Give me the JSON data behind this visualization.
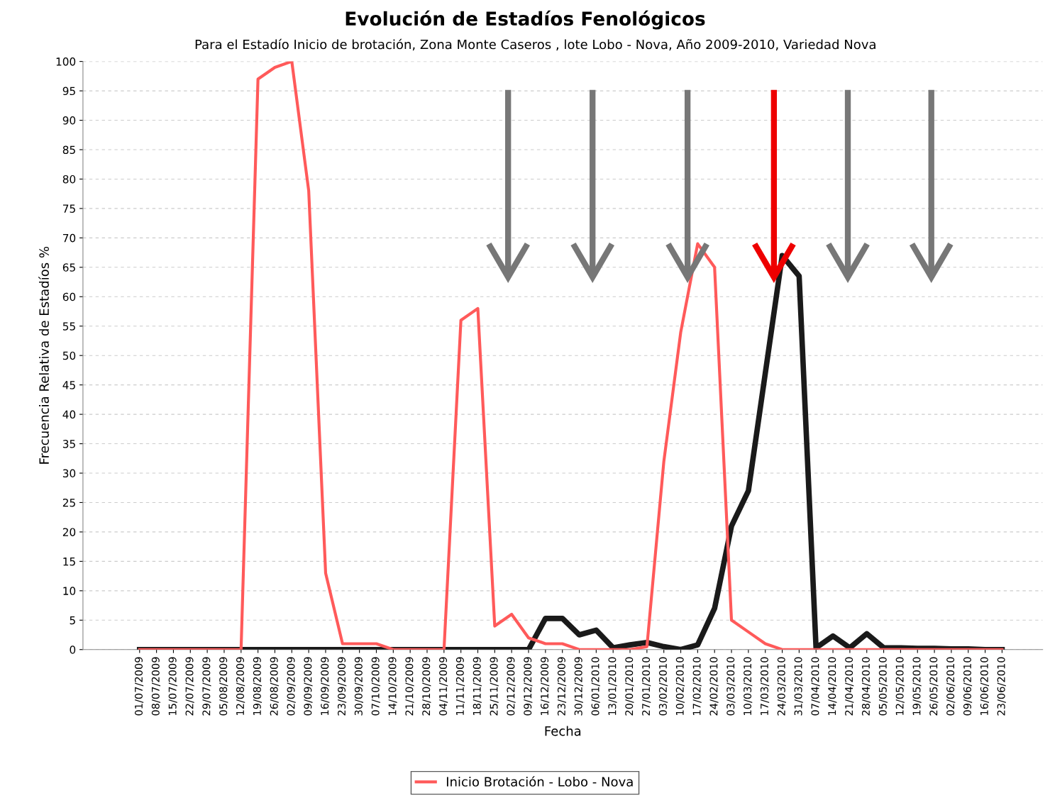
{
  "chart_data": {
    "type": "line",
    "title": "Evolución de Estadíos Fenológicos",
    "subtitle": "Para el Estadío Inicio de brotación, Zona Monte Caseros , lote Lobo - Nova, Año 2009-2010, Variedad Nova",
    "xlabel": "Fecha",
    "ylabel": "Frecuencia Relativa de Estadíos %",
    "categories": [
      "01/07/2009",
      "08/07/2009",
      "15/07/2009",
      "22/07/2009",
      "29/07/2009",
      "05/08/2009",
      "12/08/2009",
      "19/08/2009",
      "26/08/2009",
      "02/09/2009",
      "09/09/2009",
      "16/09/2009",
      "23/09/2009",
      "30/09/2009",
      "07/10/2009",
      "14/10/2009",
      "21/10/2009",
      "28/10/2009",
      "04/11/2009",
      "11/11/2009",
      "18/11/2009",
      "25/11/2009",
      "02/12/2009",
      "09/12/2009",
      "16/12/2009",
      "23/12/2009",
      "30/12/2009",
      "06/01/2010",
      "13/01/2010",
      "20/01/2010",
      "27/01/2010",
      "03/02/2010",
      "10/02/2010",
      "17/02/2010",
      "24/02/2010",
      "03/03/2010",
      "10/03/2010",
      "17/03/2010",
      "24/03/2010",
      "31/03/2010",
      "07/04/2010",
      "14/04/2010",
      "21/04/2010",
      "28/04/2010",
      "05/05/2010",
      "12/05/2010",
      "19/05/2010",
      "26/05/2010",
      "02/06/2010",
      "09/06/2010",
      "16/06/2010",
      "23/06/2010"
    ],
    "series": [
      {
        "name": "Inicio Brotación - Lobo - Nova",
        "color": "#ff5a5a",
        "values": [
          0,
          0,
          0,
          0,
          0,
          0,
          0,
          97,
          99,
          100,
          78,
          13,
          1,
          1,
          1,
          0,
          0,
          0,
          0,
          56,
          58,
          4,
          6,
          2,
          1,
          1,
          0,
          0,
          0,
          0,
          0.5,
          32,
          54,
          69,
          65,
          5,
          3,
          1,
          0,
          0,
          0,
          0,
          0,
          0,
          0,
          0,
          0,
          0,
          0,
          0,
          0,
          0
        ]
      },
      {
        "color": "#1a1a1a",
        "values": [
          0,
          0,
          0,
          0,
          0,
          0,
          0,
          0,
          0,
          0,
          0,
          0,
          0,
          0,
          0,
          0,
          0,
          0,
          0,
          0,
          0,
          0,
          0,
          0,
          5.3,
          5.3,
          2.5,
          3.3,
          0.3,
          0.8,
          1.2,
          0.5,
          0,
          0.8,
          7,
          21,
          27,
          47,
          67,
          63.5,
          0.3,
          2.3,
          0.3,
          2.7,
          0.3,
          0.3,
          0.2,
          0.2,
          0.1,
          0.1,
          0,
          0
        ]
      }
    ],
    "ylim": [
      0,
      100
    ],
    "yticks": [
      0,
      5,
      10,
      15,
      20,
      25,
      30,
      35,
      40,
      45,
      50,
      55,
      60,
      65,
      70,
      75,
      80,
      85,
      90,
      95,
      100
    ],
    "grid": "y",
    "legend": "bottom",
    "marker": "none",
    "line_style": "solid"
  }
}
